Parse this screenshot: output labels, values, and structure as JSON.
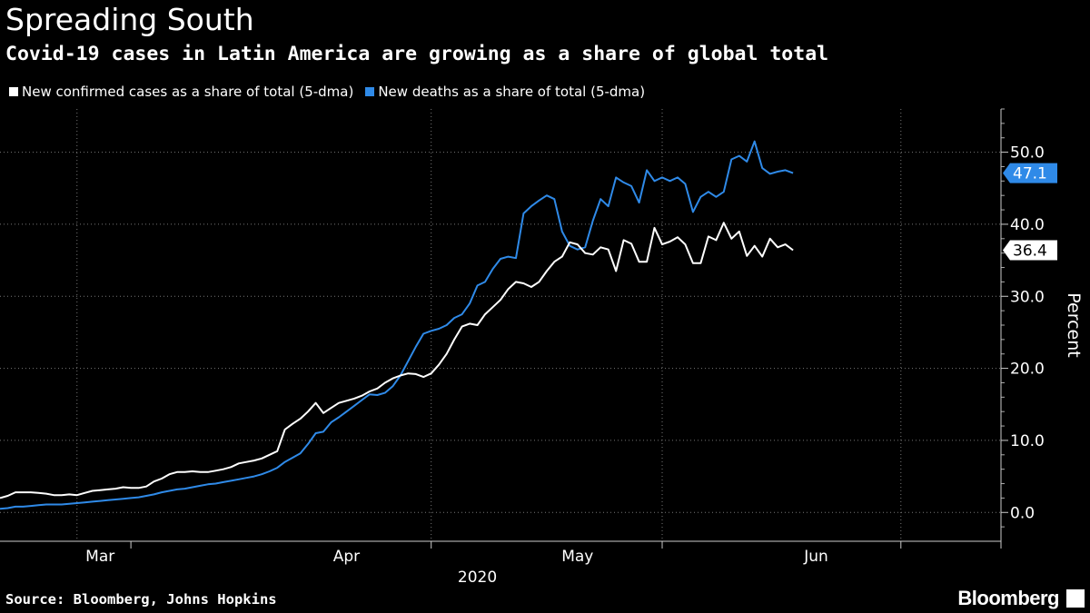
{
  "header": {
    "title": "Spreading South",
    "subtitle": "Covid-19 cases in Latin America are growing as a share of global total"
  },
  "footer": {
    "source": "Source: Bloomberg, Johns Hopkins",
    "logo": "Bloomberg"
  },
  "colors": {
    "background": "#000000",
    "cases": "#ffffff",
    "deaths": "#2f8ae8",
    "grid": "#777777"
  },
  "chart_data": {
    "type": "line",
    "ylabel": "Percent",
    "xlabel": "2020",
    "x_tick_labels": [
      "Mar",
      "Apr",
      "May",
      "Jun"
    ],
    "x_tick_dates": [
      "2020-03-01",
      "2020-04-01",
      "2020-05-01",
      "2020-06-01"
    ],
    "xlim": [
      "2020-02-20",
      "2020-06-29"
    ],
    "ylim": [
      -4,
      56
    ],
    "y_ticks": [
      0,
      10,
      20,
      30,
      40,
      50
    ],
    "y_tick_labels": [
      "0.0",
      "10.0",
      "20.0",
      "30.0",
      "40.0",
      "50.0"
    ],
    "grid": true,
    "legend_placement": "top-left",
    "x_start_date": "2020-02-20",
    "series": [
      {
        "name": "New confirmed cases as a share of total (5-dma)",
        "color": "#ffffff",
        "last_value_label": "36.4",
        "values": [
          2.0,
          2.3,
          2.8,
          2.8,
          2.8,
          2.7,
          2.6,
          2.4,
          2.4,
          2.5,
          2.4,
          2.7,
          3.0,
          3.1,
          3.2,
          3.3,
          3.5,
          3.4,
          3.4,
          3.6,
          4.3,
          4.7,
          5.3,
          5.6,
          5.6,
          5.7,
          5.6,
          5.6,
          5.8,
          6.0,
          6.3,
          6.8,
          7.0,
          7.2,
          7.5,
          8.0,
          8.5,
          11.5,
          12.3,
          13.0,
          14.0,
          15.2,
          13.8,
          14.5,
          15.2,
          15.5,
          15.8,
          16.2,
          16.8,
          17.2,
          18.0,
          18.6,
          19.0,
          19.3,
          19.2,
          18.8,
          19.3,
          20.5,
          22.0,
          24.0,
          25.8,
          26.2,
          26.0,
          27.5,
          28.5,
          29.5,
          31.0,
          32.0,
          31.8,
          31.3,
          32.0,
          33.5,
          34.8,
          35.5,
          37.5,
          37.2,
          36.0,
          35.8,
          36.8,
          36.5,
          33.5,
          37.8,
          37.3,
          34.8,
          34.8,
          39.5,
          37.2,
          37.6,
          38.2,
          37.2,
          34.6,
          34.6,
          38.3,
          37.8,
          40.2,
          38.0,
          39.0,
          35.6,
          37.0,
          35.5,
          38.0,
          36.8,
          37.2,
          36.4
        ]
      },
      {
        "name": "New deaths as a share of total (5-dma)",
        "color": "#2f8ae8",
        "last_value_label": "47.1",
        "values": [
          0.5,
          0.6,
          0.8,
          0.8,
          0.9,
          1.0,
          1.1,
          1.1,
          1.1,
          1.2,
          1.3,
          1.4,
          1.5,
          1.6,
          1.7,
          1.8,
          1.9,
          2.0,
          2.1,
          2.3,
          2.5,
          2.8,
          3.0,
          3.2,
          3.3,
          3.5,
          3.7,
          3.9,
          4.0,
          4.2,
          4.4,
          4.6,
          4.8,
          5.0,
          5.3,
          5.7,
          6.2,
          7.0,
          7.6,
          8.2,
          9.5,
          11.0,
          11.2,
          12.5,
          13.2,
          14.0,
          14.8,
          15.6,
          16.4,
          16.3,
          16.6,
          17.5,
          19.0,
          21.0,
          23.0,
          24.8,
          25.2,
          25.5,
          26.0,
          27.0,
          27.5,
          29.0,
          31.5,
          32.0,
          33.8,
          35.2,
          35.5,
          35.3,
          41.5,
          42.5,
          43.3,
          44.0,
          43.5,
          39.0,
          37.0,
          36.5,
          36.8,
          40.5,
          43.5,
          42.5,
          46.5,
          45.8,
          45.3,
          43.0,
          47.5,
          46.0,
          46.5,
          46.0,
          46.5,
          45.6,
          41.7,
          43.8,
          44.5,
          43.8,
          44.5,
          49.0,
          49.5,
          48.7,
          51.5,
          47.8,
          47.0,
          47.3,
          47.5,
          47.1
        ]
      }
    ]
  }
}
